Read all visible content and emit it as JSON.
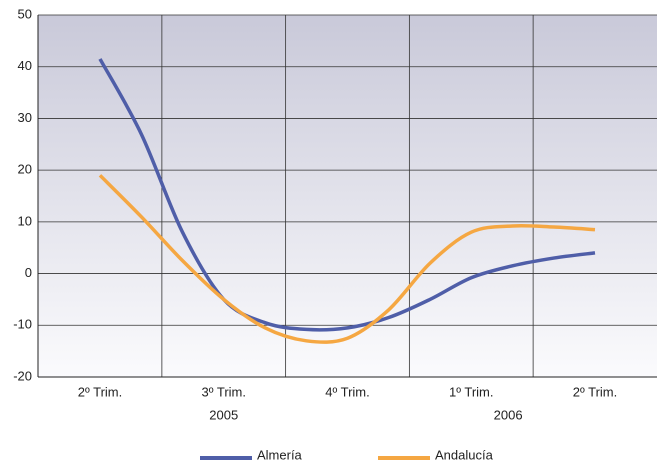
{
  "chart_data": {
    "type": "line",
    "categories": [
      "2º Trim.",
      null,
      null,
      "3º Trim.",
      null,
      null,
      "4º Trim.",
      null,
      null,
      "1º Trim.",
      null,
      null,
      "2º Trim."
    ],
    "annotations": [
      "2005",
      "2006"
    ],
    "series": [
      {
        "name": "Almería",
        "color": "#4f5ea8",
        "values": [
          41.5,
          27,
          8,
          -5,
          -9.5,
          -10.8,
          -10.5,
          -8.5,
          -5,
          -0.8,
          1.5,
          3,
          4
        ]
      },
      {
        "name": "Andalucía",
        "color": "#f5a742",
        "values": [
          19,
          11,
          2.5,
          -5,
          -10.5,
          -13,
          -12.5,
          -7,
          2,
          8,
          9.2,
          9,
          8.5
        ]
      }
    ],
    "ylim": [
      -20,
      50
    ],
    "yticks": [
      -20,
      -10,
      0,
      10,
      20,
      30,
      40,
      50
    ],
    "grid": true,
    "legend": "bottom"
  }
}
